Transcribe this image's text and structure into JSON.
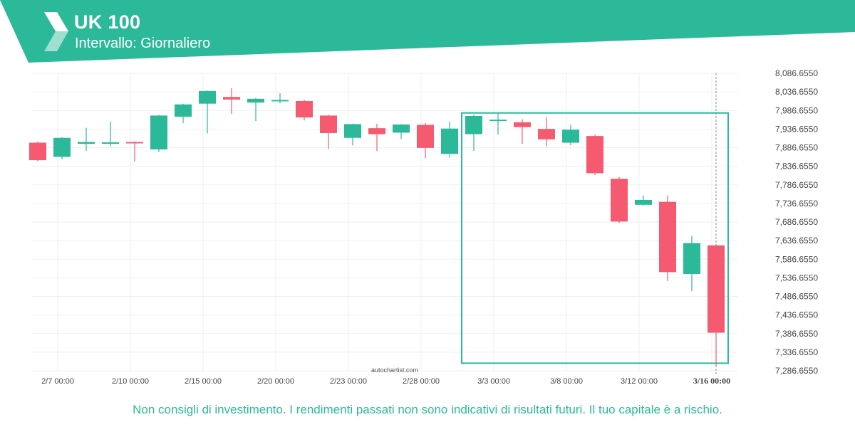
{
  "header": {
    "symbol": "UK 100",
    "interval": "Intervallo: Giornaliero",
    "accent_color": "#2bb999"
  },
  "chart_data": {
    "type": "candlestick",
    "title": "UK 100",
    "watermark": "autochartist.com",
    "y_ticks": [
      8086.655,
      8036.655,
      7986.655,
      7936.655,
      7886.655,
      7836.655,
      7786.655,
      7736.655,
      7686.655,
      7636.655,
      7586.655,
      7536.655,
      7486.655,
      7436.655,
      7386.655,
      7336.655,
      7286.655
    ],
    "y_tick_labels": [
      "8,086.6550",
      "8,036.6550",
      "7,986.6550",
      "7,936.6550",
      "7,886.6550",
      "7,836.6550",
      "7,786.6550",
      "7,736.6550",
      "7,686.6550",
      "7,636.6550",
      "7,586.6550",
      "7,536.6550",
      "7,486.6550",
      "7,436.6550",
      "7,386.6550",
      "7,336.6550",
      "7,286.6550"
    ],
    "ylim": [
      7286.655,
      8086.655
    ],
    "x_labels": [
      {
        "index": 0,
        "label": "2/7 00:00"
      },
      {
        "index": 3,
        "label": "2/10 00:00"
      },
      {
        "index": 6,
        "label": "2/15 00:00"
      },
      {
        "index": 9,
        "label": "2/20 00:00"
      },
      {
        "index": 12,
        "label": "2/23 00:00"
      },
      {
        "index": 15,
        "label": "2/28 00:00"
      },
      {
        "index": 18,
        "label": "3/3 00:00"
      },
      {
        "index": 21,
        "label": "3/8 00:00"
      },
      {
        "index": 24,
        "label": "3/12 00:00"
      },
      {
        "index": 27,
        "label": "3/16 00:00"
      }
    ],
    "candles": [
      {
        "open": 7900,
        "high": 7903,
        "low": 7850,
        "close": 7853
      },
      {
        "open": 7862,
        "high": 7915,
        "low": 7855,
        "close": 7913
      },
      {
        "open": 7897,
        "high": 7940,
        "low": 7878,
        "close": 7902
      },
      {
        "open": 7899,
        "high": 7957,
        "low": 7890,
        "close": 7901
      },
      {
        "open": 7902,
        "high": 7903,
        "low": 7850,
        "close": 7900
      },
      {
        "open": 7882,
        "high": 7975,
        "low": 7875,
        "close": 7973
      },
      {
        "open": 7970,
        "high": 8005,
        "low": 7953,
        "close": 8003
      },
      {
        "open": 8005,
        "high": 8040,
        "low": 7925,
        "close": 8039
      },
      {
        "open": 8023,
        "high": 8047,
        "low": 7978,
        "close": 8016
      },
      {
        "open": 8008,
        "high": 8021,
        "low": 7958,
        "close": 8018
      },
      {
        "open": 8013,
        "high": 8033,
        "low": 8006,
        "close": 8015
      },
      {
        "open": 8012,
        "high": 8016,
        "low": 7960,
        "close": 7968
      },
      {
        "open": 7973,
        "high": 7975,
        "low": 7883,
        "close": 7926
      },
      {
        "open": 7913,
        "high": 7951,
        "low": 7893,
        "close": 7950
      },
      {
        "open": 7939,
        "high": 7951,
        "low": 7878,
        "close": 7923
      },
      {
        "open": 7927,
        "high": 7950,
        "low": 7910,
        "close": 7949
      },
      {
        "open": 7948,
        "high": 7953,
        "low": 7858,
        "close": 7886
      },
      {
        "open": 7870,
        "high": 7957,
        "low": 7860,
        "close": 7938
      },
      {
        "open": 7923,
        "high": 7975,
        "low": 7878,
        "close": 7972
      },
      {
        "open": 7961,
        "high": 7979,
        "low": 7922,
        "close": 7962
      },
      {
        "open": 7955,
        "high": 7963,
        "low": 7897,
        "close": 7942
      },
      {
        "open": 7937,
        "high": 7969,
        "low": 7890,
        "close": 7909
      },
      {
        "open": 7900,
        "high": 7948,
        "low": 7893,
        "close": 7935
      },
      {
        "open": 7918,
        "high": 7922,
        "low": 7813,
        "close": 7818
      },
      {
        "open": 7803,
        "high": 7808,
        "low": 7684,
        "close": 7688
      },
      {
        "open": 7733,
        "high": 7758,
        "low": 7731,
        "close": 7746
      },
      {
        "open": 7741,
        "high": 7758,
        "low": 7528,
        "close": 7552
      },
      {
        "open": 7547,
        "high": 7649,
        "low": 7501,
        "close": 7630
      },
      {
        "open": 7624,
        "high": 7624,
        "low": 7300,
        "close": 7389
      }
    ],
    "pattern_box": {
      "start_index": 18,
      "end_index": 28,
      "top": 7980,
      "bottom": 7307
    },
    "current_time_index": 28,
    "colors": {
      "up": "#2bb999",
      "down": "#f55a70",
      "grid": "#efefef",
      "box": "#2bb999",
      "axis_text": "#444444"
    }
  },
  "footer": {
    "disclaimer": "Non consigli di investimento. I rendimenti passati non sono indicativi di risultati futuri. Il tuo capitale è a rischio."
  }
}
